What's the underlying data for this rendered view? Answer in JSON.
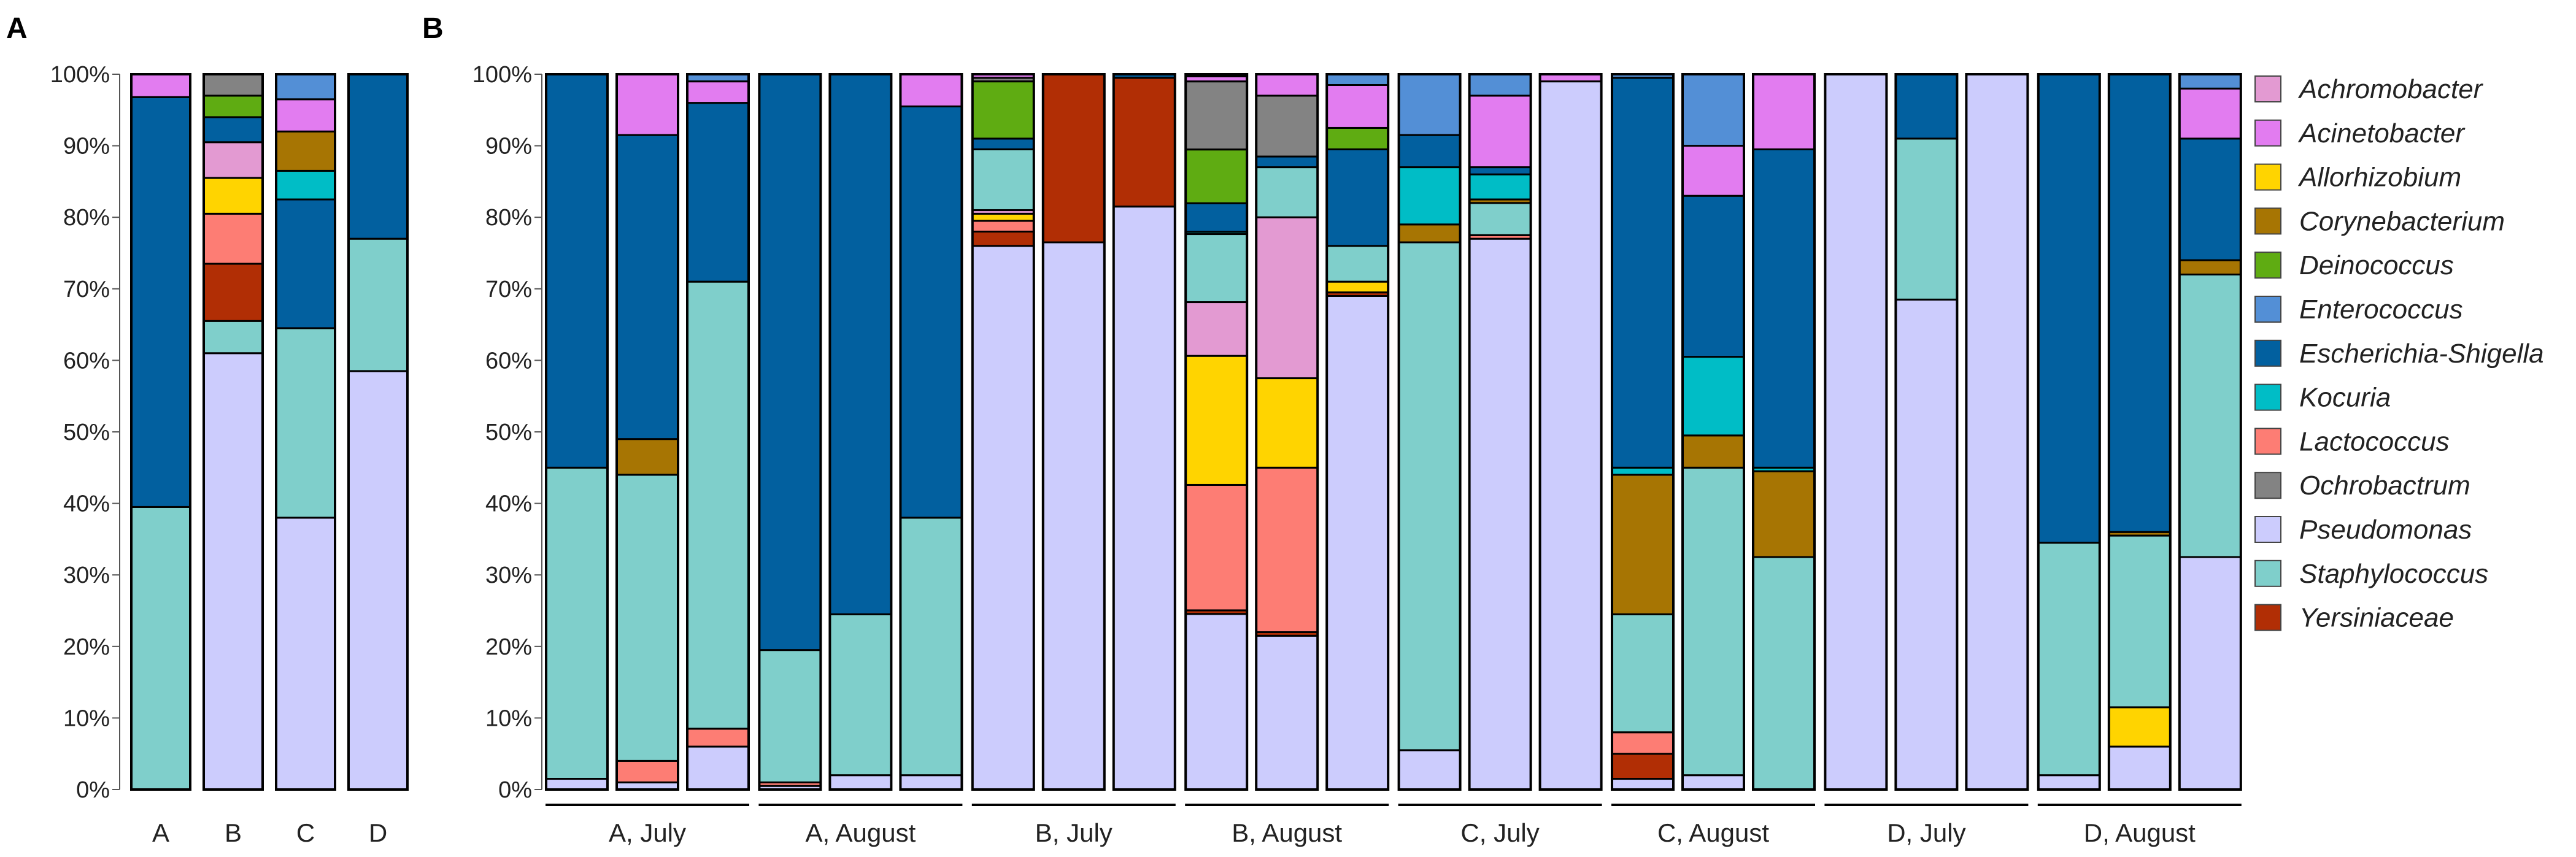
{
  "colors": {
    "Achromobacter": "#e39ad2",
    "Acinetobacter": "#e27cf0",
    "Allorhizobium": "#ffd400",
    "Corynebacterium": "#a77503",
    "Deinococcus": "#5fac12",
    "Enterococcus": "#538fd6",
    "Escherichia-Shigella": "#02609f",
    "Kocuria": "#00bdc6",
    "Lactococcus": "#fd7d74",
    "Ochrobactrum": "#838383",
    "Pseudomonas": "#ccccfd",
    "Staphylococcus": "#7fcfcb",
    "Yersiniaceae": "#b12e05"
  },
  "chart_data": [
    {
      "panel": "A",
      "type": "stacked-bar",
      "ylim": [
        0,
        100
      ],
      "yticks": [
        "0%",
        "10%",
        "20%",
        "30%",
        "40%",
        "50%",
        "60%",
        "70%",
        "80%",
        "90%",
        "100%"
      ],
      "categories": [
        "A",
        "B",
        "C",
        "D"
      ],
      "stack_order": [
        "Pseudomonas",
        "Staphylococcus",
        "Yersiniaceae",
        "Lactococcus",
        "Allorhizobium",
        "Achromobacter",
        "Escherichia-Shigella",
        "Deinococcus",
        "Ochrobactrum",
        "Kocuria",
        "Corynebacterium",
        "Acinetobacter",
        "Enterococcus"
      ],
      "bars": [
        {
          "Staphylococcus": 39.5,
          "Escherichia-Shigella": 57.3,
          "Acinetobacter": 3.2
        },
        {
          "Pseudomonas": 61,
          "Yersiniaceae": 8,
          "Lactococcus": 7,
          "Allorhizobium": 5,
          "Achromobacter": 5,
          "Staphylococcus": 4.5,
          "Escherichia-Shigella": 3.5,
          "Deinococcus": 3,
          "Ochrobactrum": 3
        },
        {
          "Pseudomonas": 38,
          "Staphylococcus": 26.5,
          "Escherichia-Shigella": 18,
          "Corynebacterium": 5.5,
          "Acinetobacter": 4.5,
          "Kocuria": 4,
          "Enterococcus": 3.5
        },
        {
          "Pseudomonas": 58.5,
          "Staphylococcus": 18.5,
          "Escherichia-Shigella": 23
        }
      ]
    },
    {
      "panel": "B",
      "type": "stacked-bar",
      "ylim": [
        0,
        100
      ],
      "yticks": [
        "0%",
        "10%",
        "20%",
        "30%",
        "40%",
        "50%",
        "60%",
        "70%",
        "80%",
        "90%",
        "100%"
      ],
      "groups": [
        "A, July",
        "A, August",
        "B, July",
        "B, August",
        "C, July",
        "C, August",
        "D, July",
        "D, August"
      ],
      "bars_per_group": 3,
      "stack_order": [
        "Pseudomonas",
        "Yersiniaceae",
        "Lactococcus",
        "Allorhizobium",
        "Achromobacter",
        "Staphylococcus",
        "Corynebacterium",
        "Kocuria",
        "Escherichia-Shigella",
        "Deinococcus",
        "Ochrobactrum",
        "Acinetobacter",
        "Enterococcus"
      ],
      "bars": [
        {
          "Pseudomonas": 1.5,
          "Staphylococcus": 43.5,
          "Escherichia-Shigella": 55
        },
        {
          "Pseudomonas": 1,
          "Lactococcus": 3,
          "Staphylococcus": 40,
          "Escherichia-Shigella": 42.5,
          "Corynebacterium": 5,
          "Acinetobacter": 8.5
        },
        {
          "Pseudomonas": 6,
          "Lactococcus": 2.5,
          "Staphylococcus": 62.5,
          "Escherichia-Shigella": 25,
          "Acinetobacter": 3,
          "Enterococcus": 1
        },
        {
          "Pseudomonas": 0.5,
          "Lactococcus": 0.5,
          "Staphylococcus": 18.5,
          "Escherichia-Shigella": 80.5
        },
        {
          "Pseudomonas": 2,
          "Staphylococcus": 22.5,
          "Escherichia-Shigella": 75.5
        },
        {
          "Pseudomonas": 2,
          "Staphylococcus": 36,
          "Escherichia-Shigella": 57.5,
          "Acinetobacter": 4.5
        },
        {
          "Pseudomonas": 76,
          "Yersiniaceae": 2,
          "Lactococcus": 1.5,
          "Allorhizobium": 1,
          "Staphylococcus": 8.5,
          "Escherichia-Shigella": 1.5,
          "Deinococcus": 8,
          "Ochrobactrum": 0.5,
          "Acinetobacter": 0.5,
          "Achromobacter": 0.5
        },
        {
          "Pseudomonas": 76.5,
          "Yersiniaceae": 23.5
        },
        {
          "Pseudomonas": 81.5,
          "Yersiniaceae": 18,
          "Escherichia-Shigella": 0.5
        },
        {
          "Pseudomonas": 24.5,
          "Yersiniaceae": 0.5,
          "Lactococcus": 17.5,
          "Allorhizobium": 18,
          "Achromobacter": 7.5,
          "Staphylococcus": 9.5,
          "Escherichia-Shigella": 4,
          "Deinococcus": 7.5,
          "Ochrobactrum": 9.5,
          "Acinetobacter": 0.7,
          "Enterococcus": 0.3,
          "Kocuria": 0.3
        },
        {
          "Pseudomonas": 21.5,
          "Yersiniaceae": 0.5,
          "Lactococcus": 23,
          "Allorhizobium": 12.5,
          "Achromobacter": 22.5,
          "Staphylococcus": 7,
          "Escherichia-Shigella": 1.5,
          "Ochrobactrum": 8.5,
          "Acinetobacter": 3
        },
        {
          "Pseudomonas": 69,
          "Yersiniaceae": 0.5,
          "Allorhizobium": 1.5,
          "Staphylococcus": 5,
          "Escherichia-Shigella": 13.5,
          "Deinococcus": 3,
          "Acinetobacter": 6,
          "Enterococcus": 1.5
        },
        {
          "Pseudomonas": 5.5,
          "Staphylococcus": 71,
          "Escherichia-Shigella": 4.5,
          "Corynebacterium": 2.5,
          "Kocuria": 8,
          "Enterococcus": 8.5
        },
        {
          "Pseudomonas": 77,
          "Staphylococcus": 4.5,
          "Escherichia-Shigella": 1,
          "Lactococcus": 0.5,
          "Corynebacterium": 0.5,
          "Acinetobacter": 10,
          "Kocuria": 3.5,
          "Enterococcus": 3
        },
        {
          "Pseudomonas": 99,
          "Acinetobacter": 1
        },
        {
          "Pseudomonas": 1.5,
          "Yersiniaceae": 3.5,
          "Lactococcus": 3,
          "Staphylococcus": 16.5,
          "Escherichia-Shigella": 54.5,
          "Corynebacterium": 19.5,
          "Kocuria": 1,
          "Enterococcus": 0.5
        },
        {
          "Pseudomonas": 2,
          "Staphylococcus": 43,
          "Escherichia-Shigella": 22.5,
          "Corynebacterium": 4.5,
          "Acinetobacter": 7,
          "Kocuria": 11,
          "Enterococcus": 10
        },
        {
          "Staphylococcus": 32.5,
          "Escherichia-Shigella": 44.5,
          "Corynebacterium": 12,
          "Acinetobacter": 10.5,
          "Kocuria": 0.5
        },
        {
          "Pseudomonas": 100
        },
        {
          "Pseudomonas": 68.5,
          "Staphylococcus": 22.5,
          "Escherichia-Shigella": 9
        },
        {
          "Pseudomonas": 100
        },
        {
          "Pseudomonas": 2,
          "Staphylococcus": 32.5,
          "Escherichia-Shigella": 65.5
        },
        {
          "Pseudomonas": 6,
          "Allorhizobium": 5.5,
          "Staphylococcus": 24,
          "Escherichia-Shigella": 64,
          "Corynebacterium": 0.5
        },
        {
          "Pseudomonas": 32.5,
          "Staphylococcus": 39.5,
          "Escherichia-Shigella": 17,
          "Corynebacterium": 2,
          "Acinetobacter": 7,
          "Enterococcus": 2
        }
      ]
    }
  ],
  "legend": [
    "Achromobacter",
    "Acinetobacter",
    "Allorhizobium",
    "Corynebacterium",
    "Deinococcus",
    "Enterococcus",
    "Escherichia-Shigella",
    "Kocuria",
    "Lactococcus",
    "Ochrobactrum",
    "Pseudomonas",
    "Staphylococcus",
    "Yersiniaceae"
  ]
}
